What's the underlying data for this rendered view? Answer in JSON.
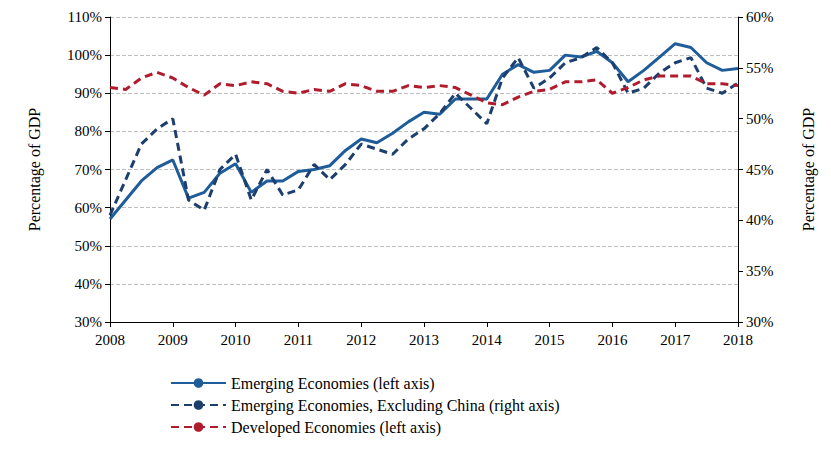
{
  "chart_data": {
    "type": "line",
    "y_label": "Percentage of GDP",
    "y2_label": "Percentage of GDP",
    "x": [
      2008,
      2008.25,
      2008.5,
      2008.75,
      2009,
      2009.25,
      2009.5,
      2009.75,
      2010,
      2010.25,
      2010.5,
      2010.75,
      2011,
      2011.25,
      2011.5,
      2011.75,
      2012,
      2012.25,
      2012.5,
      2012.75,
      2013,
      2013.25,
      2013.5,
      2013.75,
      2014,
      2014.25,
      2014.5,
      2014.75,
      2015,
      2015.25,
      2015.5,
      2015.75,
      2016,
      2016.25,
      2016.5,
      2016.75,
      2017,
      2017.25,
      2017.5,
      2017.75,
      2018
    ],
    "xlim": [
      2008,
      2018
    ],
    "xticks": [
      2008,
      2009,
      2010,
      2011,
      2012,
      2013,
      2014,
      2015,
      2016,
      2017,
      2018
    ],
    "ylim": [
      30,
      110
    ],
    "yticks": [
      {
        "value": 30,
        "label": "30%"
      },
      {
        "value": 40,
        "label": "40%"
      },
      {
        "value": 50,
        "label": "50%"
      },
      {
        "value": 60,
        "label": "60%"
      },
      {
        "value": 70,
        "label": "70%"
      },
      {
        "value": 80,
        "label": "80%"
      },
      {
        "value": 90,
        "label": "90%"
      },
      {
        "value": 100,
        "label": "100%"
      },
      {
        "value": 110,
        "label": "110%"
      }
    ],
    "y2lim": [
      30,
      60
    ],
    "y2ticks": [
      {
        "value": 30,
        "label": "30%"
      },
      {
        "value": 35,
        "label": "35%"
      },
      {
        "value": 40,
        "label": "40%"
      },
      {
        "value": 45,
        "label": "45%"
      },
      {
        "value": 50,
        "label": "50%"
      },
      {
        "value": 55,
        "label": "55%"
      },
      {
        "value": 60,
        "label": "60%"
      }
    ],
    "grid": true,
    "legend": "bottom",
    "series": [
      {
        "name": "Emerging Economies (left axis)",
        "color": "#1f5c9a",
        "line_style": "solid",
        "axis": "y",
        "values": [
          57,
          62,
          67,
          70.5,
          72.5,
          62.5,
          64,
          69,
          71.5,
          64,
          67,
          67,
          69.5,
          70,
          71,
          75,
          78,
          77,
          79.5,
          82.5,
          85,
          84.5,
          88.5,
          88.5,
          88.5,
          95,
          97.5,
          95.5,
          96,
          100,
          99.5,
          101,
          98,
          93,
          96,
          99.5,
          103,
          102,
          98,
          96,
          96.5
        ]
      },
      {
        "name": "Emerging Economies, Excluding China (right axis)",
        "color": "#1c3f6e",
        "line_style": "dashed",
        "axis": "y2",
        "values": [
          40.5,
          44,
          47.5,
          49,
          50,
          42,
          41,
          45,
          46.5,
          42,
          45,
          42.5,
          43,
          45.5,
          44,
          45.5,
          47.5,
          47,
          46.5,
          48,
          49,
          50.5,
          52.5,
          51,
          49.5,
          54,
          56,
          53,
          54,
          55.5,
          56,
          57,
          55.5,
          52.5,
          53,
          54.5,
          55.5,
          56,
          53,
          52.5,
          53.5
        ]
      },
      {
        "name": "Developed Economies (left axis)",
        "color": "#b01c2e",
        "line_style": "dashed",
        "axis": "y",
        "values": [
          91.5,
          91,
          94,
          95.5,
          94,
          91.5,
          89.5,
          92.5,
          92,
          93,
          92.5,
          90.5,
          90,
          91,
          90.5,
          92.5,
          92,
          90.5,
          90.5,
          92,
          91.5,
          92,
          91.5,
          89.5,
          87.5,
          87,
          89,
          90.5,
          91,
          93,
          93,
          93.5,
          90,
          91.5,
          93.5,
          94.5,
          94.5,
          94.5,
          92.5,
          92.5,
          92
        ]
      }
    ]
  }
}
